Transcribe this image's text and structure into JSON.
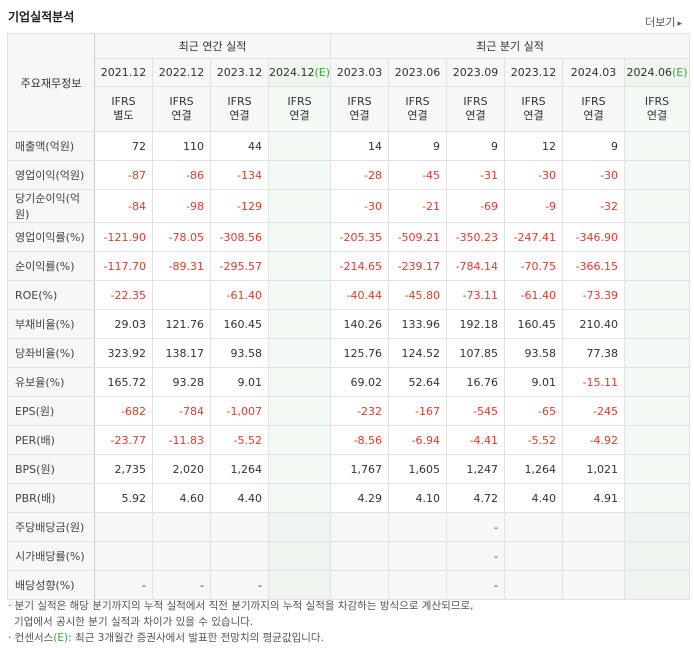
{
  "title": "기업실적분석",
  "more_label": "더보기",
  "more_arrow": "▸",
  "header": {
    "row_label": "주요재무정보",
    "annual_group": "최근 연간 실적",
    "quarter_group": "최근 분기 실적",
    "annual_periods": [
      "2021.12",
      "2022.12",
      "2023.12",
      "2024.12"
    ],
    "quarter_periods": [
      "2023.03",
      "2023.06",
      "2023.09",
      "2023.12",
      "2024.03",
      "2024.06"
    ],
    "estimate_mark": "(E)",
    "ifrs": [
      [
        "IFRS",
        "별도"
      ],
      [
        "IFRS",
        "연결"
      ],
      [
        "IFRS",
        "연결"
      ],
      [
        "IFRS",
        "연결"
      ],
      [
        "IFRS",
        "연결"
      ],
      [
        "IFRS",
        "연결"
      ],
      [
        "IFRS",
        "연결"
      ],
      [
        "IFRS",
        "연결"
      ],
      [
        "IFRS",
        "연결"
      ],
      [
        "IFRS",
        "연결"
      ]
    ]
  },
  "rows": [
    {
      "label": "매출액(억원)",
      "values": [
        "72",
        "110",
        "44",
        "",
        "14",
        "9",
        "9",
        "12",
        "9",
        ""
      ]
    },
    {
      "label": "영업이익(억원)",
      "values": [
        "-87",
        "-86",
        "-134",
        "",
        "-28",
        "-45",
        "-31",
        "-30",
        "-30",
        ""
      ]
    },
    {
      "label": "당기순이익(억원)",
      "values": [
        "-84",
        "-98",
        "-129",
        "",
        "-30",
        "-21",
        "-69",
        "-9",
        "-32",
        ""
      ]
    },
    {
      "label": "영업이익률(%)",
      "values": [
        "-121.90",
        "-78.05",
        "-308.56",
        "",
        "-205.35",
        "-509.21",
        "-350.23",
        "-247.41",
        "-346.90",
        ""
      ]
    },
    {
      "label": "순이익률(%)",
      "values": [
        "-117.70",
        "-89.31",
        "-295.57",
        "",
        "-214.65",
        "-239.17",
        "-784.14",
        "-70.75",
        "-366.15",
        ""
      ]
    },
    {
      "label": "ROE(%)",
      "values": [
        "-22.35",
        "",
        "-61.40",
        "",
        "-40.44",
        "-45.80",
        "-73.11",
        "-61.40",
        "-73.39",
        ""
      ]
    },
    {
      "label": "부채비율(%)",
      "values": [
        "29.03",
        "121.76",
        "160.45",
        "",
        "140.26",
        "133.96",
        "192.18",
        "160.45",
        "210.40",
        ""
      ]
    },
    {
      "label": "당좌비율(%)",
      "values": [
        "323.92",
        "138.17",
        "93.58",
        "",
        "125.76",
        "124.52",
        "107.85",
        "93.58",
        "77.38",
        ""
      ]
    },
    {
      "label": "유보율(%)",
      "values": [
        "165.72",
        "93.28",
        "9.01",
        "",
        "69.02",
        "52.64",
        "16.76",
        "9.01",
        "-15.11",
        ""
      ]
    },
    {
      "label": "EPS(원)",
      "values": [
        "-682",
        "-784",
        "-1,007",
        "",
        "-232",
        "-167",
        "-545",
        "-65",
        "-245",
        ""
      ]
    },
    {
      "label": "PER(배)",
      "values": [
        "-23.77",
        "-11.83",
        "-5.52",
        "",
        "-8.56",
        "-6.94",
        "-4.41",
        "-5.52",
        "-4.92",
        ""
      ]
    },
    {
      "label": "BPS(원)",
      "values": [
        "2,735",
        "2,020",
        "1,264",
        "",
        "1,767",
        "1,605",
        "1,247",
        "1,264",
        "1,021",
        ""
      ]
    },
    {
      "label": "PBR(배)",
      "values": [
        "5.92",
        "4.60",
        "4.40",
        "",
        "4.29",
        "4.10",
        "4.72",
        "4.40",
        "4.91",
        ""
      ]
    },
    {
      "label": "주당배당금(원)",
      "values": [
        "",
        "",
        "",
        "",
        "",
        "",
        "-",
        "",
        "",
        ""
      ]
    },
    {
      "label": "시가배당률(%)",
      "values": [
        "",
        "",
        "",
        "",
        "",
        "",
        "-",
        "",
        "",
        ""
      ]
    },
    {
      "label": "배당성향(%)",
      "values": [
        "-",
        "-",
        "-",
        "",
        "",
        "",
        "-",
        "",
        "",
        ""
      ]
    }
  ],
  "notes": {
    "line1": "· 분기 실적은 해당 분기까지의 누적 실적에서 직전 분기까지의 누적 실적을 차감하는 방식으로 계산되므로,",
    "line2": "기업에서 공시한 분기 실적과 차이가 있을 수 있습니다.",
    "line3_pre": "· 컨센서스",
    "line3_e": "(E)",
    "line3_post": ": 최근 3개월간 증권사에서 발표한 전망치의 평균값입니다."
  },
  "colors": {
    "negative": "#e23a2b",
    "ifrs": "#f06b1a",
    "estimate": "#3fa33f"
  }
}
